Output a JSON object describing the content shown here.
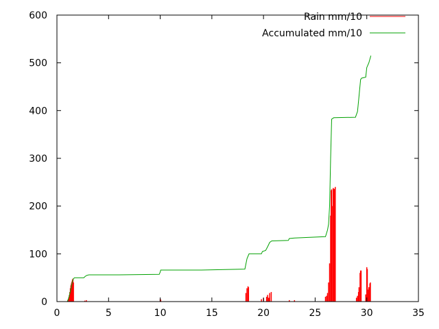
{
  "chart_data": {
    "type": "line",
    "title": "",
    "xlabel": "",
    "ylabel": "",
    "xlim": [
      0,
      35
    ],
    "ylim": [
      0,
      600
    ],
    "x_ticks": [
      0,
      5,
      10,
      15,
      20,
      25,
      30,
      35
    ],
    "y_ticks": [
      0,
      100,
      200,
      300,
      400,
      500,
      600
    ],
    "grid": false,
    "legend_position": "top-right",
    "series": [
      {
        "name": "Rain mm/10",
        "style": "impulses",
        "color": "#ff0000",
        "points": [
          [
            1.0,
            0
          ],
          [
            1.05,
            2
          ],
          [
            1.1,
            5
          ],
          [
            1.15,
            9
          ],
          [
            1.2,
            14
          ],
          [
            1.25,
            20
          ],
          [
            1.3,
            28
          ],
          [
            1.35,
            34
          ],
          [
            1.4,
            38
          ],
          [
            1.45,
            42
          ],
          [
            1.5,
            46
          ],
          [
            1.55,
            48
          ],
          [
            1.6,
            40
          ],
          [
            2.7,
            2
          ],
          [
            2.85,
            3
          ],
          [
            10.0,
            5
          ],
          [
            10.05,
            4
          ],
          [
            18.3,
            18
          ],
          [
            18.4,
            28
          ],
          [
            18.5,
            32
          ],
          [
            18.55,
            30
          ],
          [
            19.8,
            5
          ],
          [
            20.0,
            7
          ],
          [
            20.3,
            10
          ],
          [
            20.4,
            14
          ],
          [
            20.5,
            8
          ],
          [
            20.6,
            18
          ],
          [
            20.75,
            20
          ],
          [
            22.5,
            3
          ],
          [
            23.0,
            3
          ],
          [
            26.0,
            10
          ],
          [
            26.1,
            12
          ],
          [
            26.2,
            18
          ],
          [
            26.3,
            40
          ],
          [
            26.4,
            80
          ],
          [
            26.5,
            180
          ],
          [
            26.55,
            233
          ],
          [
            26.6,
            235
          ],
          [
            26.7,
            200
          ],
          [
            26.75,
            238
          ],
          [
            26.85,
            236
          ],
          [
            26.95,
            240
          ],
          [
            29.0,
            8
          ],
          [
            29.1,
            12
          ],
          [
            29.2,
            20
          ],
          [
            29.25,
            30
          ],
          [
            29.35,
            60
          ],
          [
            29.4,
            65
          ],
          [
            29.45,
            65
          ],
          [
            29.9,
            15
          ],
          [
            30.0,
            72
          ],
          [
            30.05,
            68
          ],
          [
            30.1,
            25
          ],
          [
            30.2,
            30
          ],
          [
            30.3,
            38
          ],
          [
            30.35,
            40
          ]
        ]
      },
      {
        "name": "Accumulated mm/10",
        "style": "line",
        "color": "#00a000",
        "points": [
          [
            1.0,
            0
          ],
          [
            1.1,
            5
          ],
          [
            1.2,
            12
          ],
          [
            1.3,
            22
          ],
          [
            1.4,
            32
          ],
          [
            1.5,
            42
          ],
          [
            1.6,
            48
          ],
          [
            1.7,
            50
          ],
          [
            2.6,
            50
          ],
          [
            2.75,
            53
          ],
          [
            2.9,
            55
          ],
          [
            3.1,
            56
          ],
          [
            6.0,
            56
          ],
          [
            9.9,
            57
          ],
          [
            10.0,
            62
          ],
          [
            10.05,
            66
          ],
          [
            14.0,
            66
          ],
          [
            18.2,
            68
          ],
          [
            18.4,
            90
          ],
          [
            18.6,
            100
          ],
          [
            19.8,
            100
          ],
          [
            19.9,
            105
          ],
          [
            20.2,
            107
          ],
          [
            20.4,
            115
          ],
          [
            20.6,
            124
          ],
          [
            20.8,
            127
          ],
          [
            22.4,
            128
          ],
          [
            22.5,
            132
          ],
          [
            23.0,
            133
          ],
          [
            26.0,
            136
          ],
          [
            26.2,
            150
          ],
          [
            26.3,
            162
          ],
          [
            26.4,
            200
          ],
          [
            26.5,
            300
          ],
          [
            26.6,
            382
          ],
          [
            26.8,
            385
          ],
          [
            28.9,
            386
          ],
          [
            29.1,
            398
          ],
          [
            29.2,
            420
          ],
          [
            29.4,
            465
          ],
          [
            29.5,
            468
          ],
          [
            29.9,
            470
          ],
          [
            30.0,
            490
          ],
          [
            30.2,
            500
          ],
          [
            30.4,
            515
          ]
        ]
      }
    ]
  }
}
